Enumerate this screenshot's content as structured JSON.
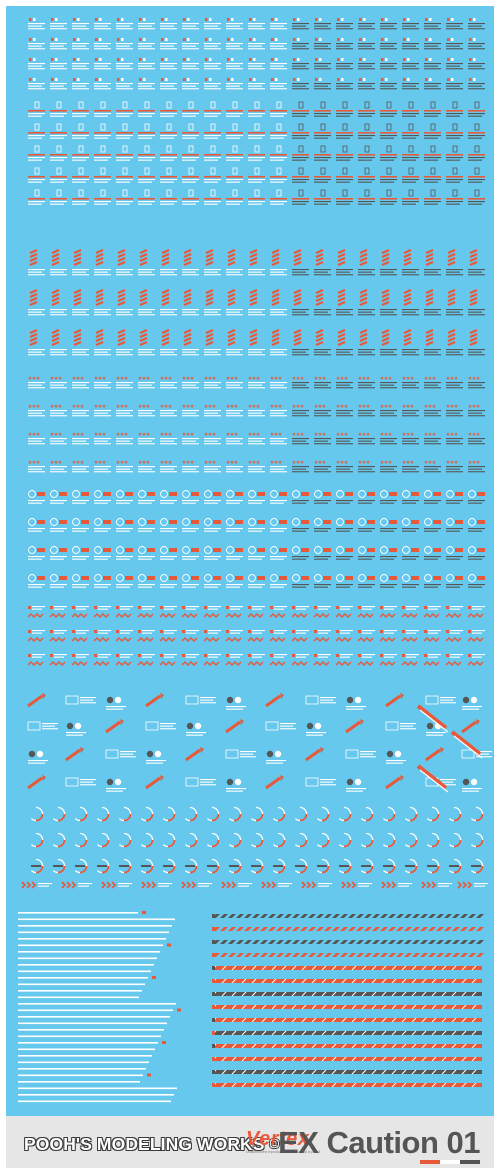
{
  "sheet": {
    "brand": "POOH'S MODELING WORKS",
    "brand_mark": "©",
    "publisher": "Vertex",
    "publisher_sub": "Unauthorized reproduction of this decal is prohibited",
    "product": "EX Caution 01"
  },
  "colors": {
    "background": "#66c8ec",
    "decal_white": "#ffffff",
    "decal_red": "#e8593a",
    "decal_gray": "#555555",
    "footer": "#e6e6e6"
  },
  "decal_groups": [
    {
      "kind": "caution-tag",
      "marks": [
        "red-square",
        "white-text-lines"
      ]
    },
    {
      "kind": "warning-box",
      "marks": [
        "white-outline",
        "red-underline"
      ]
    },
    {
      "kind": "hazard-stripe-tag",
      "marks": [
        "diagonal-red-stripes"
      ]
    },
    {
      "kind": "star-line",
      "marks": [
        "three-red-stars",
        "white-text-lines"
      ]
    },
    {
      "kind": "circle-badge",
      "marks": [
        "white-circle",
        "red-block"
      ]
    },
    {
      "kind": "danger-label",
      "marks": [
        "red-arrow",
        "red-zigzag"
      ]
    },
    {
      "kind": "gauge-ring",
      "marks": [
        "partial-red-ring"
      ]
    },
    {
      "kind": "chevron-strip",
      "marks": [
        "red-chevrons"
      ]
    },
    {
      "kind": "hazard-border",
      "marks": [
        "long-striped-bars"
      ]
    }
  ],
  "icons": [
    "star-icon",
    "arrow-icon",
    "chevron-icon",
    "ring-icon",
    "wing-icon"
  ]
}
